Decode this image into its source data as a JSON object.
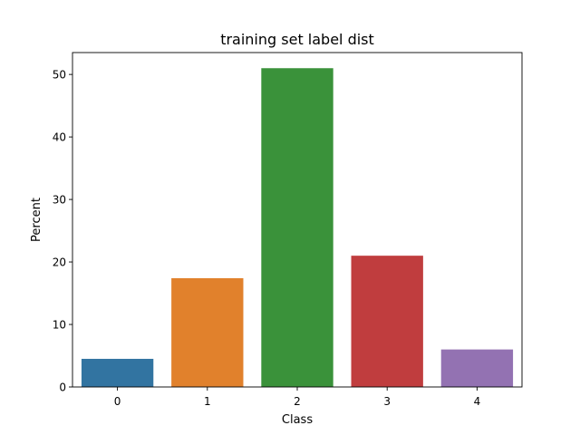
{
  "chart_data": {
    "type": "bar",
    "title": "training set label dist",
    "xlabel": "Class",
    "ylabel": "Percent",
    "categories": [
      "0",
      "1",
      "2",
      "3",
      "4"
    ],
    "values": [
      4.5,
      17.4,
      51.0,
      21.0,
      6.0
    ],
    "colors": [
      "#3274a1",
      "#e1812c",
      "#3a923a",
      "#c03d3e",
      "#9372b2"
    ],
    "ylim": [
      0,
      53.5
    ],
    "yticks": [
      0,
      10,
      20,
      30,
      40,
      50
    ],
    "grid": false,
    "legend": "none"
  }
}
